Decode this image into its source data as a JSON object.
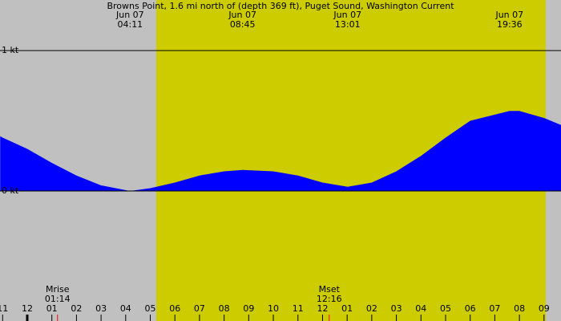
{
  "chart_data": {
    "type": "area",
    "title": "Browns Point, 1.6 mi north of (depth 369 ft), Puget Sound, Washington Current",
    "x": [
      -1.1,
      -1,
      0,
      1,
      2,
      3,
      4.18,
      5,
      6,
      7,
      8,
      8.75,
      10,
      11,
      12,
      13.02,
      14,
      15,
      16,
      17,
      18,
      19.6,
      20,
      21,
      21.69
    ],
    "series": [
      {
        "color": "#0000ff",
        "values": [
          0.39,
          0.38,
          0.3,
          0.2,
          0.11,
          0.04,
          0.0,
          0.02,
          0.06,
          0.11,
          0.14,
          0.15,
          0.14,
          0.11,
          0.06,
          0.03,
          0.06,
          0.14,
          0.25,
          0.38,
          0.5,
          0.57,
          0.57,
          0.52,
          0.47
        ]
      }
    ],
    "xlim": [
      -1.107,
      21.69
    ],
    "ylim": [
      -0.926,
      1.36
    ],
    "yticks": [
      {
        "value": 1,
        "label": "1 kt"
      },
      {
        "value": 0,
        "label": "0 kt"
      }
    ],
    "xticks": [
      {
        "value": -1,
        "label": "11"
      },
      {
        "value": 0,
        "label": "12"
      },
      {
        "value": 1,
        "label": "01"
      },
      {
        "value": 2,
        "label": "02"
      },
      {
        "value": 3,
        "label": "03"
      },
      {
        "value": 4,
        "label": "04"
      },
      {
        "value": 5,
        "label": "05"
      },
      {
        "value": 6,
        "label": "06"
      },
      {
        "value": 7,
        "label": "07"
      },
      {
        "value": 8,
        "label": "08"
      },
      {
        "value": 9,
        "label": "09"
      },
      {
        "value": 10,
        "label": "10"
      },
      {
        "value": 11,
        "label": "11"
      },
      {
        "value": 12,
        "label": "12"
      },
      {
        "value": 13,
        "label": "01"
      },
      {
        "value": 14,
        "label": "02"
      },
      {
        "value": 15,
        "label": "03"
      },
      {
        "value": 16,
        "label": "04"
      },
      {
        "value": 17,
        "label": "05"
      },
      {
        "value": 18,
        "label": "06"
      },
      {
        "value": 19,
        "label": "07"
      },
      {
        "value": 20,
        "label": "08"
      },
      {
        "value": 21,
        "label": "09"
      }
    ],
    "daylight": [
      5.24,
      21.07
    ],
    "events": [
      {
        "x": 4.18,
        "date": "Jun 07",
        "time": "04:11"
      },
      {
        "x": 8.75,
        "date": "Jun 07",
        "time": "08:45"
      },
      {
        "x": 13.02,
        "date": "Jun 07",
        "time": "13:01"
      },
      {
        "x": 19.6,
        "date": "Jun 07",
        "time": "19:36"
      }
    ],
    "moon": [
      {
        "x": 1.23,
        "label": "Mrise",
        "time": "01:14"
      },
      {
        "x": 12.27,
        "label": "Mset",
        "time": "12:16"
      }
    ]
  }
}
